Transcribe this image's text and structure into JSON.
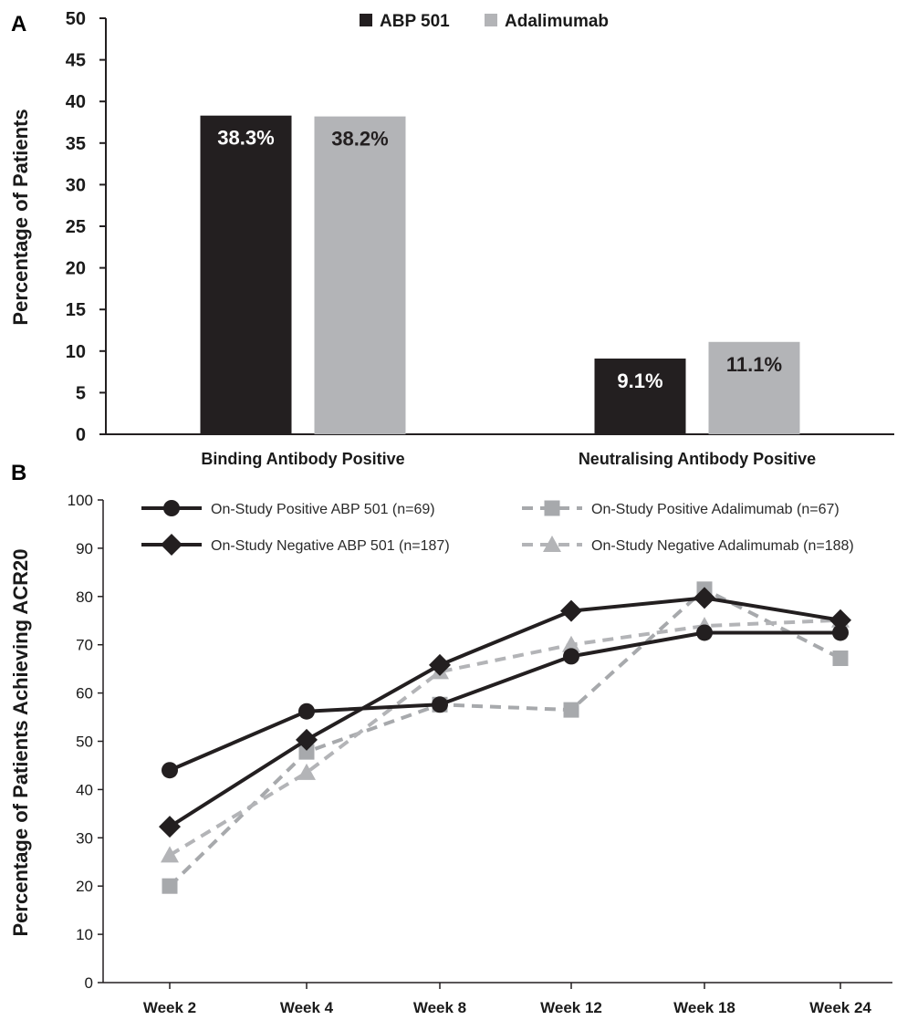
{
  "chart_data": [
    {
      "panel": "A",
      "type": "bar",
      "ylabel": "Percentage of Patients",
      "ylim": [
        0,
        50
      ],
      "yticks": [
        0,
        5,
        10,
        15,
        20,
        25,
        30,
        35,
        40,
        45,
        50
      ],
      "categories": [
        "Binding Antibody Positive",
        "Neutralising Antibody Positive"
      ],
      "series": [
        {
          "name": "ABP 501",
          "color": "#231f20",
          "values": [
            38.3,
            9.1
          ],
          "labels": [
            "38.3%",
            "9.1%"
          ],
          "label_color": "#ffffff"
        },
        {
          "name": "Adalimumab",
          "color": "#b3b4b7",
          "values": [
            38.2,
            11.1
          ],
          "labels": [
            "38.2%",
            "11.1%"
          ],
          "label_color": "#231f20"
        }
      ],
      "legend_position": "top"
    },
    {
      "panel": "B",
      "type": "line",
      "ylabel": "Percentage of Patients Achieving ACR20",
      "ylim": [
        0,
        100
      ],
      "yticks": [
        0,
        10,
        20,
        30,
        40,
        50,
        60,
        70,
        80,
        90,
        100
      ],
      "categories": [
        "Week 2",
        "Week 4",
        "Week 8",
        "Week 12",
        "Week 18",
        "Week 24"
      ],
      "series": [
        {
          "name": "On-Study Positive ABP 501 (n=69)",
          "values": [
            44,
            56.2,
            57.6,
            67.6,
            72.5,
            72.5
          ],
          "color": "#231f20",
          "dashed": false,
          "marker": "circle"
        },
        {
          "name": "On-Study Negative ABP 501 (n=187)",
          "values": [
            32.3,
            50.3,
            65.8,
            77,
            79.7,
            75.1
          ],
          "color": "#231f20",
          "dashed": false,
          "marker": "diamond"
        },
        {
          "name": "On-Study Positive Adalimumab (n=67)",
          "values": [
            20,
            47.8,
            57.6,
            56.5,
            81.5,
            67.2
          ],
          "color": "#a7a9ac",
          "dashed": true,
          "marker": "square"
        },
        {
          "name": "On-Study Negative Adalimumab (n=188)",
          "values": [
            26.4,
            43.5,
            64.4,
            70,
            73.9,
            75.1
          ],
          "color": "#b3b4b7",
          "dashed": true,
          "marker": "triangle"
        }
      ],
      "grid": false,
      "legend_position": "top"
    }
  ]
}
